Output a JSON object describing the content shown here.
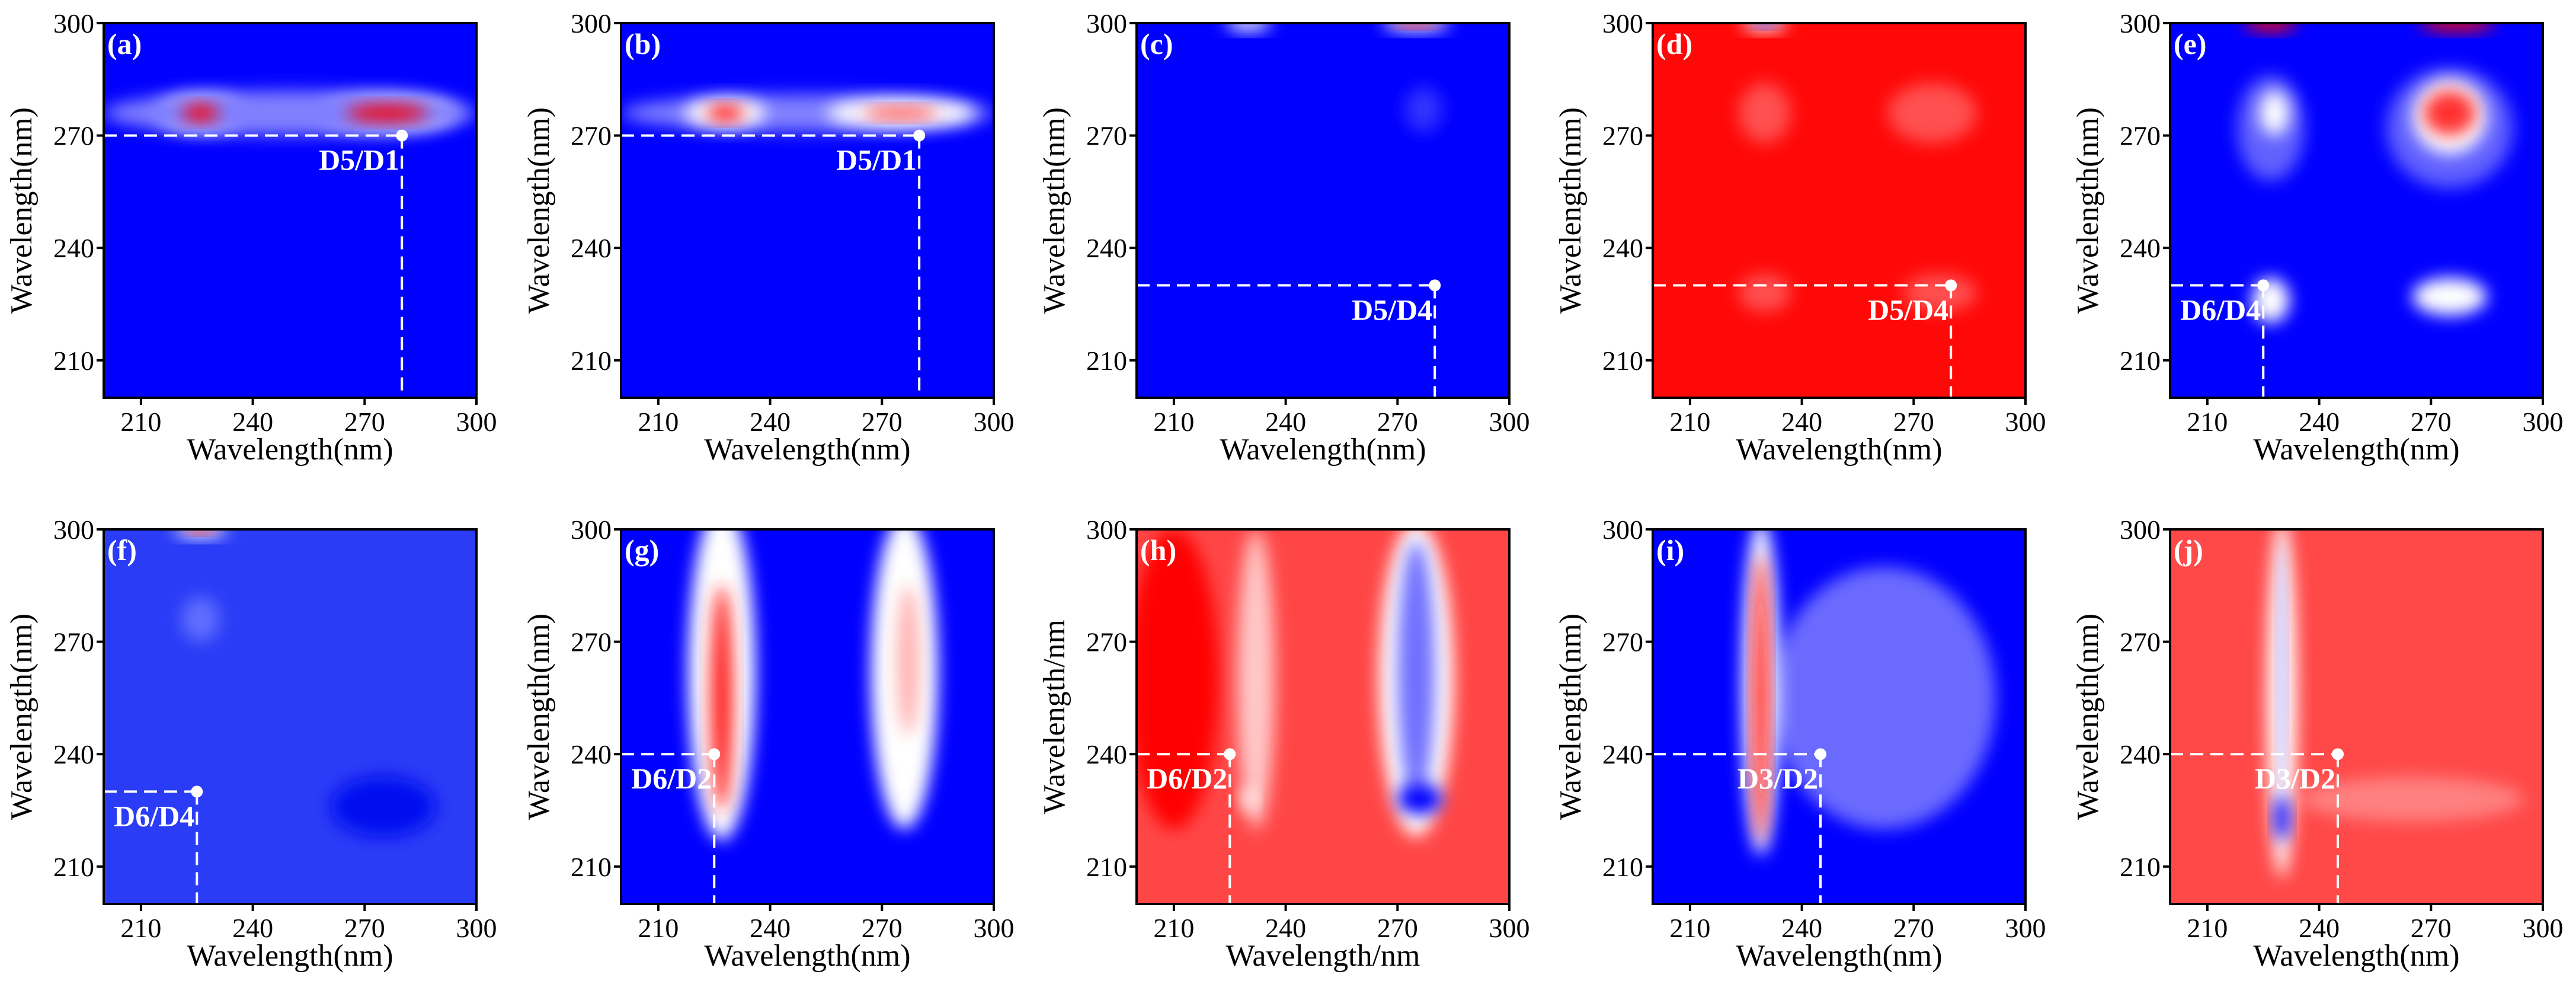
{
  "chart_data": [
    {
      "type": "heatmap",
      "panel": "(a)",
      "xlabel": "Wavelength(nm)",
      "ylabel": "Wavelength(nm)",
      "xlim": [
        200,
        300
      ],
      "ylim": [
        200,
        300
      ],
      "xticks": [
        "210",
        "240",
        "270",
        "300"
      ],
      "yticks": [
        "210",
        "240",
        "270",
        "300"
      ],
      "background": "#0000ff",
      "marker": {
        "x": 280,
        "y": 270,
        "label": "D5/D1"
      },
      "features": [
        {
          "x": 226,
          "y": 276,
          "rx": 12,
          "ry": 5,
          "color": "#ffffff"
        },
        {
          "x": 276,
          "y": 276,
          "rx": 19,
          "ry": 5,
          "color": "#ffffff"
        },
        {
          "x": 250,
          "y": 276,
          "rx": 50,
          "ry": 6,
          "color": "#8080ff"
        },
        {
          "x": 226,
          "y": 276,
          "rx": 5,
          "ry": 2.2,
          "color": "#ff0000"
        },
        {
          "x": 276,
          "y": 276,
          "rx": 11,
          "ry": 2.2,
          "color": "#ff0000"
        }
      ]
    },
    {
      "type": "heatmap",
      "panel": "(b)",
      "xlabel": "Wavelength(nm)",
      "ylabel": "Wavelength(nm)",
      "xlim": [
        200,
        300
      ],
      "ylim": [
        200,
        300
      ],
      "xticks": [
        "210",
        "240",
        "270",
        "300"
      ],
      "yticks": [
        "210",
        "240",
        "270",
        "300"
      ],
      "background": "#0000ff",
      "marker": {
        "x": 280,
        "y": 270,
        "label": "D5/D1"
      },
      "features": [
        {
          "x": 250,
          "y": 276,
          "rx": 50,
          "ry": 5,
          "color": "#8080ff"
        },
        {
          "x": 228,
          "y": 276,
          "rx": 11,
          "ry": 4,
          "color": "#ffffff"
        },
        {
          "x": 275,
          "y": 276,
          "rx": 20,
          "ry": 4,
          "color": "#ffffff"
        },
        {
          "x": 228,
          "y": 276,
          "rx": 5,
          "ry": 2,
          "color": "#ff0000"
        },
        {
          "x": 275,
          "y": 276,
          "rx": 10,
          "ry": 1.5,
          "color": "#ff3030"
        }
      ]
    },
    {
      "type": "heatmap",
      "panel": "(c)",
      "xlabel": "Wavelength(nm)",
      "ylabel": "Wavelength(nm)",
      "xlim": [
        200,
        300
      ],
      "ylim": [
        200,
        300
      ],
      "xticks": [
        "210",
        "240",
        "270",
        "300"
      ],
      "yticks": [
        "210",
        "240",
        "270",
        "300"
      ],
      "background": "#0000ff",
      "marker": {
        "x": 280,
        "y": 230,
        "label": "D5/D4"
      },
      "features": [
        {
          "x": 277,
          "y": 277,
          "rx": 5,
          "ry": 6,
          "color": "#3030ff"
        },
        {
          "x": 230,
          "y": 300,
          "rx": 6,
          "ry": 2,
          "color": "#ffffff"
        },
        {
          "x": 275,
          "y": 300,
          "rx": 9,
          "ry": 2,
          "color": "#ffffff"
        },
        {
          "x": 275,
          "y": 300,
          "rx": 6,
          "ry": 1,
          "color": "#ff0000"
        }
      ]
    },
    {
      "type": "heatmap",
      "panel": "(d)",
      "xlabel": "Wavelength(nm)",
      "ylabel": "Wavelength(nm)",
      "xlim": [
        200,
        300
      ],
      "ylim": [
        200,
        300
      ],
      "xticks": [
        "210",
        "240",
        "270",
        "300"
      ],
      "yticks": [
        "210",
        "240",
        "270",
        "300"
      ],
      "background": "#ff0808",
      "marker": {
        "x": 280,
        "y": 230,
        "label": "D5/D4"
      },
      "features": [
        {
          "x": 230,
          "y": 276,
          "rx": 7,
          "ry": 8,
          "color": "#ff5050"
        },
        {
          "x": 275,
          "y": 276,
          "rx": 12,
          "ry": 8,
          "color": "#ff5050"
        },
        {
          "x": 230,
          "y": 228,
          "rx": 7,
          "ry": 5,
          "color": "#ff5050"
        },
        {
          "x": 277,
          "y": 228,
          "rx": 10,
          "ry": 5,
          "color": "#ff5050"
        },
        {
          "x": 230,
          "y": 300,
          "rx": 6,
          "ry": 2,
          "color": "#ffffff"
        },
        {
          "x": 230,
          "y": 300,
          "rx": 3,
          "ry": 1,
          "color": "#0000ff"
        }
      ]
    },
    {
      "type": "heatmap",
      "panel": "(e)",
      "xlabel": "Wavelength(nm)",
      "ylabel": "Wavelength(nm)",
      "xlim": [
        200,
        300
      ],
      "ylim": [
        200,
        300
      ],
      "xticks": [
        "210",
        "240",
        "270",
        "300"
      ],
      "yticks": [
        "210",
        "240",
        "270",
        "300"
      ],
      "background": "#0000ff",
      "marker": {
        "x": 225,
        "y": 230,
        "label": "D6/D4"
      },
      "features": [
        {
          "x": 227,
          "y": 272,
          "rx": 9,
          "ry": 14,
          "color": "#6060ff"
        },
        {
          "x": 275,
          "y": 272,
          "rx": 17,
          "ry": 16,
          "color": "#6060ff"
        },
        {
          "x": 228,
          "y": 276,
          "rx": 4,
          "ry": 6,
          "color": "#ffffff"
        },
        {
          "x": 275,
          "y": 275,
          "rx": 10,
          "ry": 10,
          "color": "#ffffff"
        },
        {
          "x": 275,
          "y": 276,
          "rx": 7,
          "ry": 6,
          "color": "#ff3030"
        },
        {
          "x": 227,
          "y": 226,
          "rx": 5,
          "ry": 6,
          "color": "#ffffff"
        },
        {
          "x": 275,
          "y": 227,
          "rx": 10,
          "ry": 5,
          "color": "#ffffff"
        },
        {
          "x": 227,
          "y": 300,
          "rx": 7,
          "ry": 2,
          "color": "#ff0000"
        },
        {
          "x": 277,
          "y": 300,
          "rx": 10,
          "ry": 2,
          "color": "#ff0000"
        }
      ]
    },
    {
      "type": "heatmap",
      "panel": "(f)",
      "xlabel": "Wavelength(nm)",
      "ylabel": "Wavelength(nm)",
      "xlim": [
        200,
        300
      ],
      "ylim": [
        200,
        300
      ],
      "xticks": [
        "210",
        "240",
        "270",
        "300"
      ],
      "yticks": [
        "210",
        "240",
        "270",
        "300"
      ],
      "background": "#2a3cf6",
      "marker": {
        "x": 225,
        "y": 230,
        "label": "D6/D4"
      },
      "features": [
        {
          "x": 226,
          "y": 276,
          "rx": 5,
          "ry": 6,
          "color": "#6070ff"
        },
        {
          "x": 275,
          "y": 226,
          "rx": 14,
          "ry": 8,
          "color": "#0010f0"
        },
        {
          "x": 226,
          "y": 300,
          "rx": 7,
          "ry": 2,
          "color": "#ffffff"
        },
        {
          "x": 226,
          "y": 300,
          "rx": 4,
          "ry": 1,
          "color": "#ff0000"
        }
      ]
    },
    {
      "type": "heatmap",
      "panel": "(g)",
      "xlabel": "Wavelength(nm)",
      "ylabel": "Wavelength(nm)",
      "xlim": [
        200,
        300
      ],
      "ylim": [
        200,
        300
      ],
      "xticks": [
        "210",
        "240",
        "270",
        "300"
      ],
      "yticks": [
        "210",
        "240",
        "270",
        "300"
      ],
      "background": "#0000ff",
      "marker": {
        "x": 225,
        "y": 240,
        "label": "D6/D2"
      },
      "features": [
        {
          "x": 227,
          "y": 262,
          "rx": 9,
          "ry": 45,
          "color": "#ffffff"
        },
        {
          "x": 276,
          "y": 262,
          "rx": 9,
          "ry": 42,
          "color": "#ffffff"
        },
        {
          "x": 227,
          "y": 255,
          "rx": 3,
          "ry": 30,
          "color": "#ff2020"
        },
        {
          "x": 277,
          "y": 265,
          "rx": 3,
          "ry": 20,
          "color": "#ffb0b0"
        }
      ]
    },
    {
      "type": "heatmap",
      "panel": "(h)",
      "xlabel": "Wavelength/nm",
      "ylabel": "Wavelength/nm",
      "xlim": [
        200,
        300
      ],
      "ylim": [
        200,
        300
      ],
      "xticks": [
        "210",
        "240",
        "270",
        "300"
      ],
      "yticks": [
        "210",
        "240",
        "270",
        "300"
      ],
      "background": "#ff4646",
      "marker": {
        "x": 225,
        "y": 240,
        "label": "D6/D2"
      },
      "features": [
        {
          "x": 210,
          "y": 260,
          "rx": 12,
          "ry": 40,
          "color": "#ff0000"
        },
        {
          "x": 232,
          "y": 260,
          "rx": 5,
          "ry": 40,
          "color": "#ffc8c8"
        },
        {
          "x": 275,
          "y": 260,
          "rx": 10,
          "ry": 42,
          "color": "#ffffff"
        },
        {
          "x": 275,
          "y": 262,
          "rx": 5,
          "ry": 35,
          "color": "#7070ff"
        },
        {
          "x": 276,
          "y": 228,
          "rx": 6,
          "ry": 4,
          "color": "#0000ff"
        },
        {
          "x": 230,
          "y": 228,
          "rx": 2,
          "ry": 3,
          "color": "#ffffff"
        }
      ]
    },
    {
      "type": "heatmap",
      "panel": "(i)",
      "xlabel": "Wavelength(nm)",
      "ylabel": "Wavelength(nm)",
      "xlim": [
        200,
        300
      ],
      "ylim": [
        200,
        300
      ],
      "xticks": [
        "210",
        "240",
        "270",
        "300"
      ],
      "yticks": [
        "210",
        "240",
        "270",
        "300"
      ],
      "background": "#0000ff",
      "marker": {
        "x": 245,
        "y": 240,
        "label": "D3/D2"
      },
      "features": [
        {
          "x": 262,
          "y": 255,
          "rx": 30,
          "ry": 35,
          "color": "#6a6aff"
        },
        {
          "x": 229,
          "y": 258,
          "rx": 5,
          "ry": 45,
          "color": "#ffffff"
        },
        {
          "x": 229,
          "y": 255,
          "rx": 2,
          "ry": 38,
          "color": "#ff1010"
        }
      ]
    },
    {
      "type": "heatmap",
      "panel": "(j)",
      "xlabel": "Wavelength(nm)",
      "ylabel": "Wavelength(nm)",
      "xlim": [
        200,
        300
      ],
      "ylim": [
        200,
        300
      ],
      "xticks": [
        "210",
        "240",
        "270",
        "300"
      ],
      "yticks": [
        "210",
        "240",
        "270",
        "300"
      ],
      "background": "#ff4848",
      "marker": {
        "x": 245,
        "y": 240,
        "label": "D3/D2"
      },
      "features": [
        {
          "x": 265,
          "y": 228,
          "rx": 30,
          "ry": 6,
          "color": "#ff8080"
        },
        {
          "x": 230,
          "y": 255,
          "rx": 4,
          "ry": 48,
          "color": "#ffffff"
        },
        {
          "x": 230,
          "y": 262,
          "rx": 1,
          "ry": 35,
          "color": "#a0a0ff"
        },
        {
          "x": 230,
          "y": 223,
          "rx": 2,
          "ry": 6,
          "color": "#0000ff"
        }
      ]
    }
  ]
}
